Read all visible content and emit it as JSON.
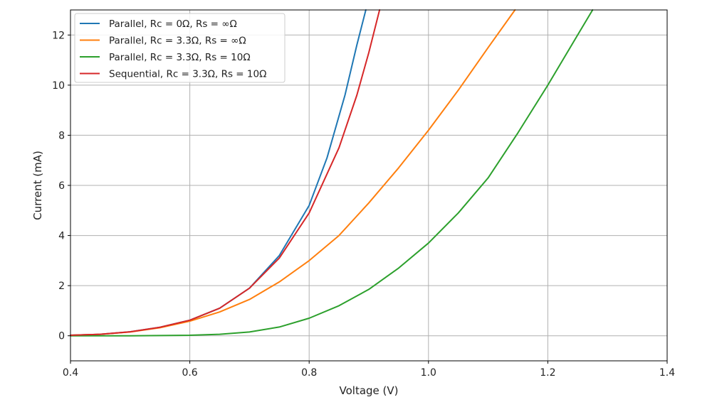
{
  "chart_data": {
    "type": "line",
    "title": "",
    "xlabel": "Voltage (V)",
    "ylabel": "Current (mA)",
    "xlim": [
      0.4,
      1.4
    ],
    "ylim": [
      -1,
      13
    ],
    "x_ticks": [
      "0.4",
      "0.6",
      "0.8",
      "1.0",
      "1.2",
      "1.4"
    ],
    "y_ticks": [
      "0",
      "2",
      "4",
      "6",
      "8",
      "10",
      "12"
    ],
    "grid": true,
    "legend_position": "top-left",
    "series": [
      {
        "name": "Parallel, Rc = 0Ω, Rs = ∞Ω",
        "color": "#1f77b4",
        "x": [
          0.4,
          0.45,
          0.5,
          0.55,
          0.6,
          0.65,
          0.7,
          0.75,
          0.8,
          0.83,
          0.86,
          0.88,
          0.895
        ],
        "y": [
          0.02,
          0.06,
          0.16,
          0.34,
          0.62,
          1.1,
          1.9,
          3.2,
          5.2,
          7.1,
          9.6,
          11.6,
          13.0
        ]
      },
      {
        "name": "Parallel, Rc = 3.3Ω, Rs = ∞Ω",
        "color": "#ff7f0e",
        "x": [
          0.4,
          0.45,
          0.5,
          0.55,
          0.6,
          0.65,
          0.7,
          0.75,
          0.8,
          0.85,
          0.9,
          0.95,
          1.0,
          1.05,
          1.1,
          1.145
        ],
        "y": [
          0.02,
          0.06,
          0.15,
          0.32,
          0.58,
          0.95,
          1.45,
          2.15,
          3.0,
          4.0,
          5.3,
          6.7,
          8.2,
          9.8,
          11.5,
          13.0
        ]
      },
      {
        "name": "Parallel, Rc = 3.3Ω, Rs = 10Ω",
        "color": "#2ca02c",
        "x": [
          0.4,
          0.5,
          0.6,
          0.65,
          0.7,
          0.75,
          0.8,
          0.85,
          0.9,
          0.95,
          1.0,
          1.05,
          1.1,
          1.15,
          1.2,
          1.25,
          1.275
        ],
        "y": [
          0.0,
          0.0,
          0.02,
          0.06,
          0.15,
          0.35,
          0.7,
          1.2,
          1.85,
          2.7,
          3.7,
          4.9,
          6.3,
          8.1,
          10.0,
          12.0,
          13.0
        ]
      },
      {
        "name": "Sequential, Rc = 3.3Ω, Rs = 10Ω",
        "color": "#d62728",
        "x": [
          0.4,
          0.45,
          0.5,
          0.55,
          0.6,
          0.65,
          0.7,
          0.75,
          0.8,
          0.85,
          0.88,
          0.9,
          0.918
        ],
        "y": [
          0.02,
          0.06,
          0.16,
          0.34,
          0.62,
          1.1,
          1.9,
          3.1,
          4.9,
          7.5,
          9.6,
          11.3,
          13.0
        ]
      }
    ]
  }
}
